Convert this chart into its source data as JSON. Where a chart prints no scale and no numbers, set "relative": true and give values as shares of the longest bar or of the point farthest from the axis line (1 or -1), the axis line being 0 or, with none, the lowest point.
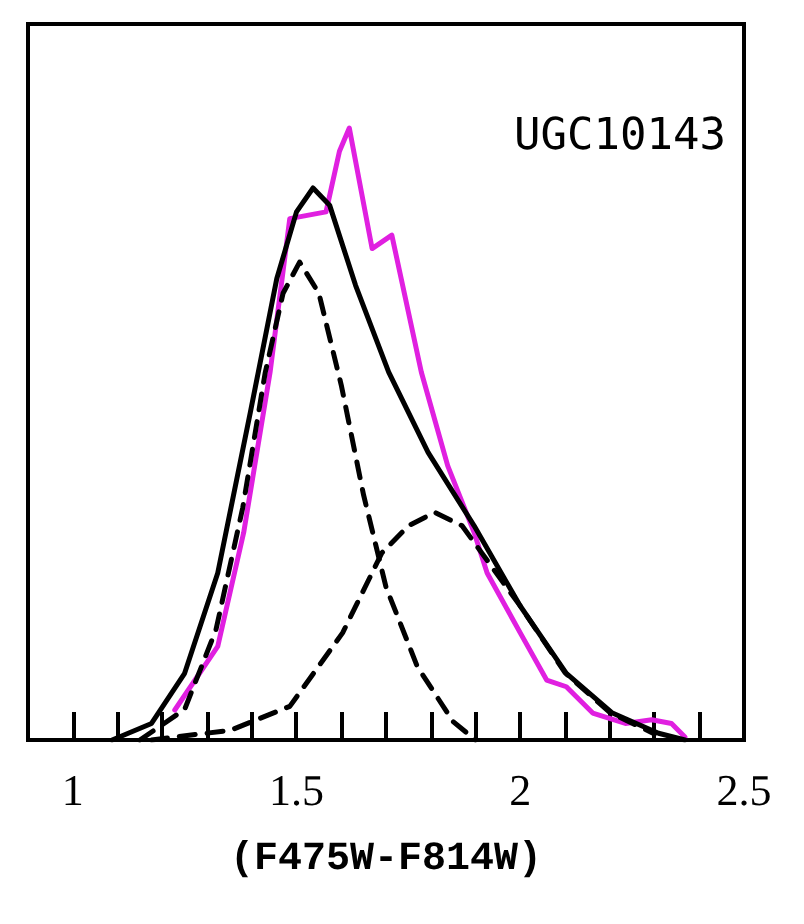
{
  "chart_data": {
    "type": "line",
    "title": "UGC10143",
    "xlabel": "(F475W-F814W)",
    "relative": true,
    "xlim": [
      0.9,
      2.5
    ],
    "xticks": [
      1,
      1.5,
      2,
      2.5
    ],
    "grid": false,
    "marker": "none",
    "series": [
      {
        "color": "#e020e0",
        "line_style": "solid",
        "x": [
          1.228,
          1.324,
          1.382,
          1.441,
          1.485,
          1.566,
          1.596,
          1.618,
          1.669,
          1.713,
          1.779,
          1.838,
          1.897,
          1.926,
          2.0,
          2.059,
          2.103,
          2.162,
          2.235,
          2.294,
          2.338,
          2.368
        ],
        "values": [
          0.049,
          0.153,
          0.339,
          0.601,
          0.852,
          0.863,
          0.962,
          1.0,
          0.803,
          0.825,
          0.601,
          0.448,
          0.339,
          0.273,
          0.175,
          0.098,
          0.087,
          0.044,
          0.027,
          0.033,
          0.027,
          0.005
        ]
      },
      {
        "color": "#000000",
        "line_style": "solid",
        "x": [
          1.088,
          1.176,
          1.25,
          1.324,
          1.397,
          1.456,
          1.5,
          1.537,
          1.574,
          1.632,
          1.706,
          1.794,
          1.897,
          2.0,
          2.103,
          2.206,
          2.309,
          2.368
        ],
        "values": [
          0,
          0.027,
          0.109,
          0.273,
          0.536,
          0.754,
          0.863,
          0.902,
          0.874,
          0.743,
          0.601,
          0.47,
          0.35,
          0.219,
          0.109,
          0.044,
          0.011,
          0
        ]
      },
      {
        "color": "#000000",
        "line_style": "dashed",
        "x": [
          1.15,
          1.25,
          1.32,
          1.38,
          1.43,
          1.47,
          1.507,
          1.55,
          1.6,
          1.65,
          1.7,
          1.77,
          1.85,
          1.9
        ],
        "values": [
          0,
          0.05,
          0.18,
          0.38,
          0.6,
          0.73,
          0.781,
          0.73,
          0.58,
          0.4,
          0.25,
          0.12,
          0.03,
          0
        ]
      },
      {
        "color": "#000000",
        "line_style": "dashed",
        "x": [
          1.176,
          1.353,
          1.485,
          1.603,
          1.691,
          1.75,
          1.809,
          1.87,
          2.0,
          2.1,
          2.2,
          2.3
        ],
        "values": [
          0,
          0.016,
          0.055,
          0.175,
          0.306,
          0.35,
          0.372,
          0.35,
          0.219,
          0.11,
          0.045,
          0.01
        ]
      }
    ]
  }
}
